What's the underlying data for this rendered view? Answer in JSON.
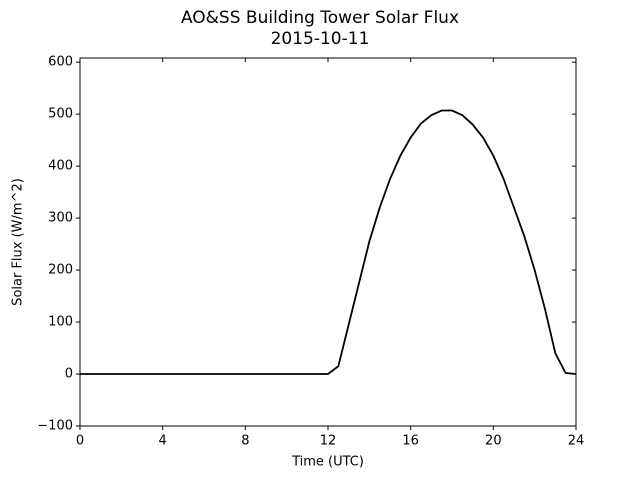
{
  "chart_data": {
    "type": "line",
    "title": "AO&SS Building Tower Solar Flux",
    "subtitle": "2015-10-11",
    "x_label": "Time (UTC)",
    "y_label": "Solar Flux (W/m^2)",
    "x": [
      0,
      0.5,
      1,
      1.5,
      2,
      2.5,
      3,
      3.5,
      4,
      4.5,
      5,
      5.5,
      6,
      6.5,
      7,
      7.5,
      8,
      8.5,
      9,
      9.5,
      10,
      10.5,
      11,
      11.5,
      12,
      12.5,
      13,
      13.5,
      14,
      14.5,
      15,
      15.5,
      16,
      16.5,
      17,
      17.5,
      18,
      18.5,
      19,
      19.5,
      20,
      20.5,
      21,
      21.5,
      22,
      22.5,
      23,
      23.5,
      24
    ],
    "series": [
      {
        "name": "Solar Flux",
        "color": "#000000",
        "values": [
          0,
          0,
          0,
          0,
          0,
          0,
          0,
          0,
          0,
          0,
          0,
          0,
          0,
          0,
          0,
          0,
          0,
          0,
          0,
          0,
          0,
          0,
          0,
          0,
          0,
          15,
          95,
          175,
          255,
          320,
          375,
          420,
          455,
          482,
          498,
          507,
          507,
          498,
          480,
          455,
          420,
          375,
          320,
          265,
          200,
          125,
          40,
          2,
          0
        ]
      }
    ],
    "xlim": [
      0,
      24
    ],
    "xticks": [
      0,
      4,
      8,
      12,
      16,
      20,
      24
    ],
    "ylim": [
      -100,
      608
    ],
    "yticks": [
      {
        "value": -100,
        "label": "−100"
      },
      0,
      100,
      200,
      300,
      400,
      500,
      600
    ]
  }
}
